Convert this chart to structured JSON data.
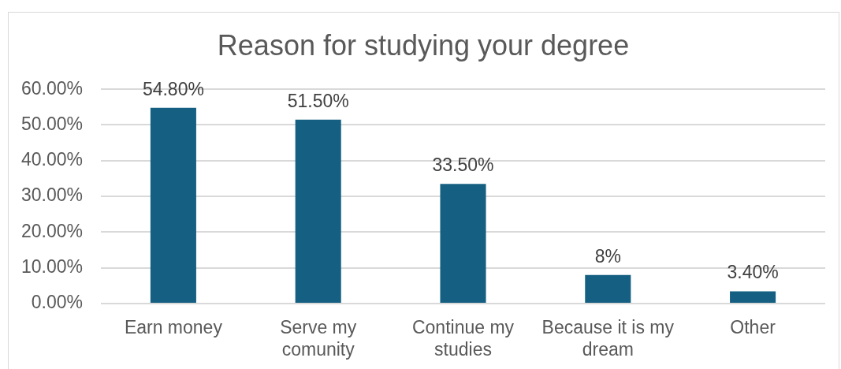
{
  "chart_data": {
    "type": "bar",
    "title": "Reason for studying your degree",
    "categories": [
      "Earn money",
      "Serve my comunity",
      "Continue my studies",
      "Because it is my dream",
      "Other"
    ],
    "values": [
      54.8,
      51.5,
      33.5,
      8,
      3.4
    ],
    "color": "#156082",
    "value_labels": [
      "54.80%",
      "51.50%",
      "33.50%",
      "8%",
      "3.40%"
    ],
    "ylim": [
      0,
      60
    ],
    "yticks": [
      {
        "value": 0,
        "label": "0.00%"
      },
      {
        "value": 10,
        "label": "10.00%"
      },
      {
        "value": 20,
        "label": "20.00%"
      },
      {
        "value": 30,
        "label": "30.00%"
      },
      {
        "value": 40,
        "label": "40.00%"
      },
      {
        "value": 50,
        "label": "50.00%"
      },
      {
        "value": 60,
        "label": "60.00%"
      }
    ],
    "grid": "y"
  }
}
